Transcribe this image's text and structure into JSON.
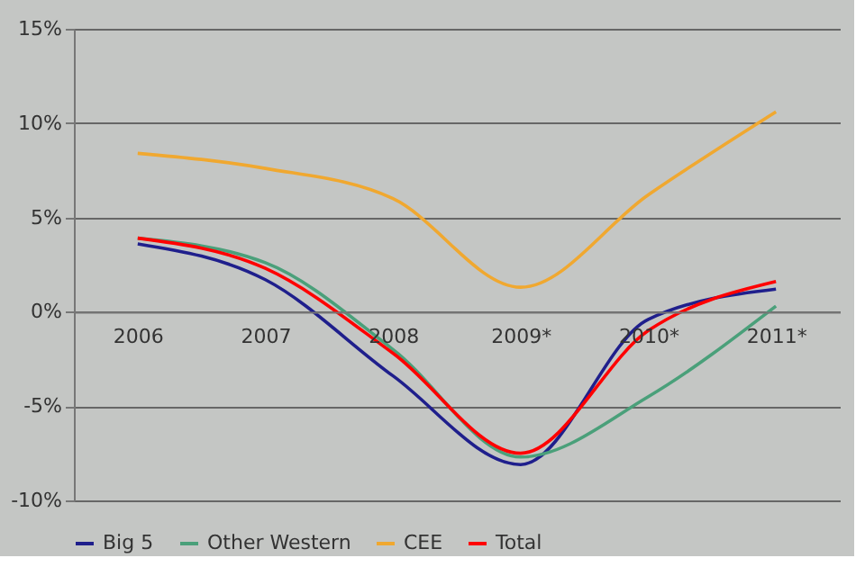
{
  "chart_data": {
    "type": "line",
    "categories": [
      "2006",
      "2007",
      "2008",
      "2009*",
      "2010*",
      "2011*"
    ],
    "series": [
      {
        "name": "Big 5",
        "color": "#1f1f8c",
        "values": [
          3.6,
          1.7,
          -3.4,
          -8.1,
          -0.4,
          1.2
        ]
      },
      {
        "name": "Other Western",
        "color": "#4aa07a",
        "values": [
          3.9,
          2.6,
          -2.0,
          -7.7,
          -4.5,
          0.3
        ]
      },
      {
        "name": "CEE",
        "color": "#f0a830",
        "values": [
          8.4,
          7.6,
          6.0,
          1.3,
          6.2,
          10.6
        ]
      },
      {
        "name": "Total",
        "color": "#ff0000",
        "values": [
          3.9,
          2.3,
          -2.2,
          -7.5,
          -1.0,
          1.6
        ]
      }
    ],
    "ylim": [
      -10,
      15
    ],
    "yticks": [
      {
        "value": -10,
        "label": "-10%"
      },
      {
        "value": -5,
        "label": "-5%"
      },
      {
        "value": 0,
        "label": "0%"
      },
      {
        "value": 5,
        "label": "5%"
      },
      {
        "value": 10,
        "label": "10%"
      },
      {
        "value": 15,
        "label": "15%"
      }
    ],
    "grid": "y",
    "legend": "bottom",
    "marker": "none",
    "line_style": "solid"
  }
}
